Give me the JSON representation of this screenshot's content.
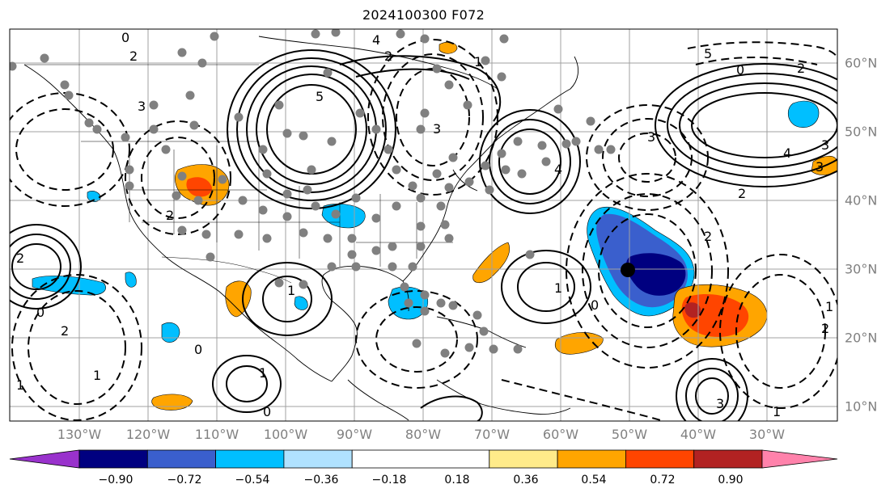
{
  "title": "2024100300 F072",
  "lon_labels": [
    "130°W",
    "120°W",
    "110°W",
    "100°W",
    "90°W",
    "80°W",
    "70°W",
    "60°W",
    "50°W",
    "40°W",
    "30°W"
  ],
  "lat_labels": [
    "60°N",
    "50°N",
    "40°N",
    "30°N",
    "20°N",
    "10°N"
  ],
  "colorbar": {
    "ticks": [
      "−0.90",
      "−0.72",
      "−0.54",
      "−0.36",
      "−0.18",
      "0.18",
      "0.36",
      "0.54",
      "0.72",
      "0.90"
    ],
    "colors": {
      "under": "#9932cc",
      "bins": [
        "#000080",
        "#3a5fcd",
        "#00bfff",
        "#b0e2ff",
        "#ffffff",
        "#ffeb8a",
        "#ffa500",
        "#ff4500",
        "#b22222"
      ],
      "over": "#ff82ab"
    }
  },
  "contour_labels": [
    "0",
    "2",
    "3",
    "4",
    "5",
    "1",
    "2",
    "3",
    "4",
    "5",
    "3",
    "2",
    "3",
    "0",
    "2",
    "4",
    "2",
    "1",
    "0",
    "2",
    "1",
    "0",
    "1",
    "2",
    "3",
    "2",
    "1",
    "1",
    "1",
    "0",
    "2",
    "1",
    "0",
    "3"
  ],
  "storm_marker": "circle-marker"
}
